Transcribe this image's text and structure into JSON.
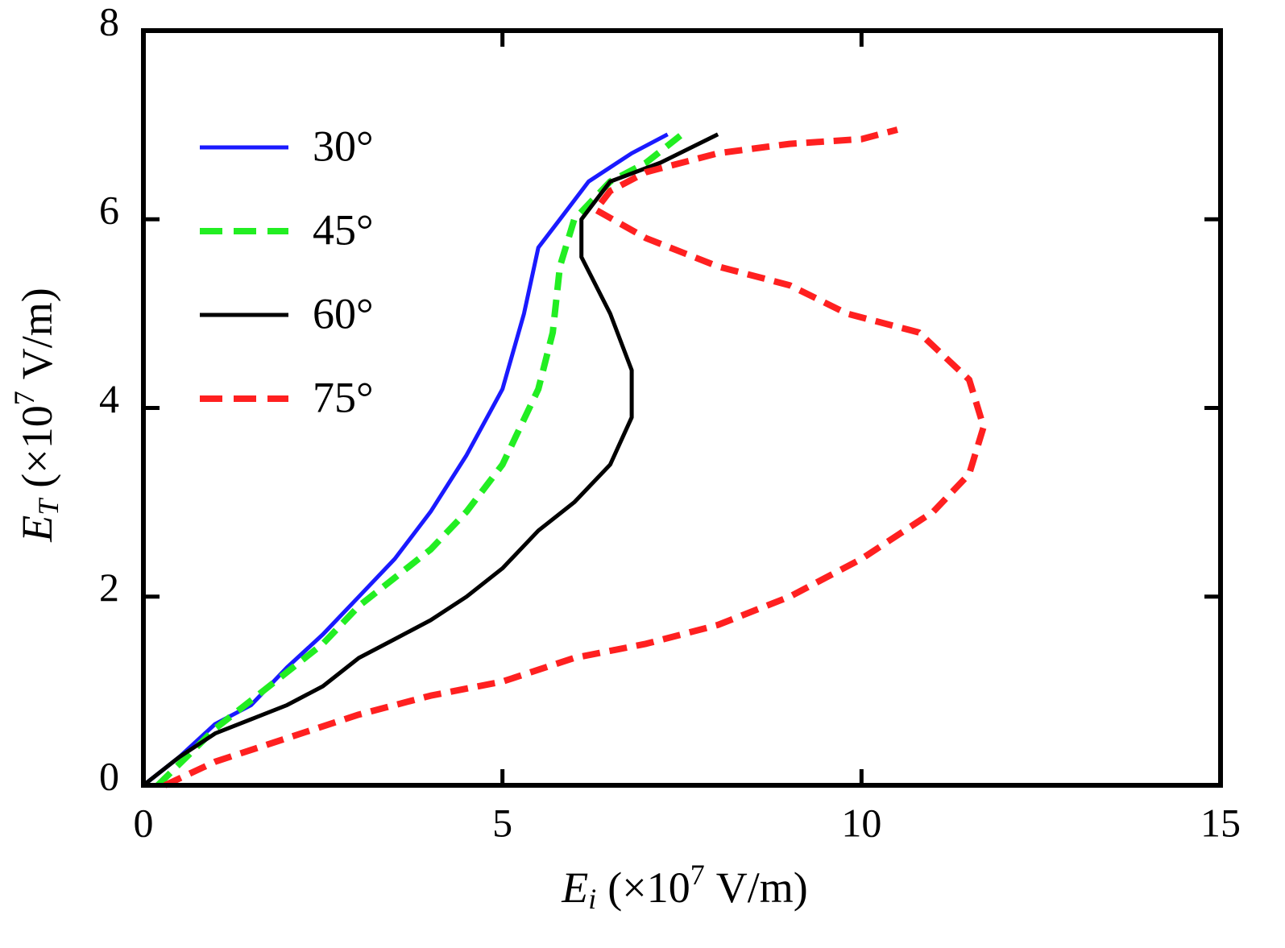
{
  "chart_data": {
    "type": "line",
    "xlabel": {
      "var": "E",
      "sub": "i",
      "text": "(×10",
      "sup": "7",
      "unit": "V/m)"
    },
    "ylabel": {
      "var": "E",
      "sub": "T",
      "text": "(×10",
      "sup": "7",
      "unit": "V/m)"
    },
    "xlim": [
      0,
      15
    ],
    "xticks": [
      0,
      5,
      10,
      15
    ],
    "ylim": [
      0,
      8
    ],
    "yticks": [
      0,
      2,
      4,
      6,
      8
    ],
    "legend": "upper left",
    "series": [
      {
        "name": "30°",
        "color": "#1a1aff",
        "dashed": false,
        "x": [
          0,
          0.5,
          1,
          1.5,
          2,
          2.5,
          3,
          3.5,
          4,
          4.5,
          5,
          5.3,
          5.5,
          5.8,
          6.2,
          6.8,
          7.3
        ],
        "y": [
          0,
          0.3,
          0.65,
          0.85,
          1.25,
          1.6,
          2.0,
          2.4,
          2.9,
          3.5,
          4.2,
          5.0,
          5.7,
          6.0,
          6.4,
          6.7,
          6.9
        ]
      },
      {
        "name": "45°",
        "color": "#22ee22",
        "dashed": true,
        "x": [
          0.2,
          0.6,
          1,
          1.5,
          2,
          2.5,
          3,
          3.5,
          4,
          4.5,
          5,
          5.5,
          5.7,
          5.8,
          6.0,
          6.5,
          7,
          7.5
        ],
        "y": [
          0,
          0.3,
          0.6,
          0.9,
          1.2,
          1.5,
          1.9,
          2.2,
          2.5,
          2.9,
          3.4,
          4.2,
          4.8,
          5.5,
          6.0,
          6.4,
          6.6,
          6.9
        ]
      },
      {
        "name": "60°",
        "color": "#000000",
        "dashed": false,
        "x": [
          0,
          0.5,
          1,
          1.5,
          2,
          2.5,
          3,
          3.5,
          4,
          4.5,
          5,
          5.5,
          6,
          6.5,
          6.8,
          6.8,
          6.5,
          6.1,
          6.1,
          6.5,
          7.2,
          8
        ],
        "y": [
          0,
          0.3,
          0.55,
          0.7,
          0.85,
          1.05,
          1.35,
          1.55,
          1.75,
          2.0,
          2.3,
          2.7,
          3.0,
          3.4,
          3.9,
          4.4,
          5.0,
          5.6,
          6.0,
          6.4,
          6.6,
          6.9
        ]
      },
      {
        "name": "75°",
        "color": "#ff2020",
        "dashed": true,
        "x": [
          0.3,
          1,
          2,
          3,
          4,
          5,
          6,
          7,
          8,
          9,
          10,
          11,
          11.5,
          11.7,
          11.5,
          10.8,
          9.8,
          9,
          8,
          7,
          6.3,
          6.5,
          7,
          8,
          9,
          10,
          10.5
        ],
        "y": [
          0,
          0.25,
          0.5,
          0.75,
          0.95,
          1.1,
          1.35,
          1.5,
          1.7,
          2.0,
          2.4,
          2.9,
          3.3,
          3.8,
          4.3,
          4.8,
          5.0,
          5.3,
          5.5,
          5.8,
          6.1,
          6.3,
          6.5,
          6.7,
          6.8,
          6.85,
          6.95
        ]
      }
    ]
  }
}
